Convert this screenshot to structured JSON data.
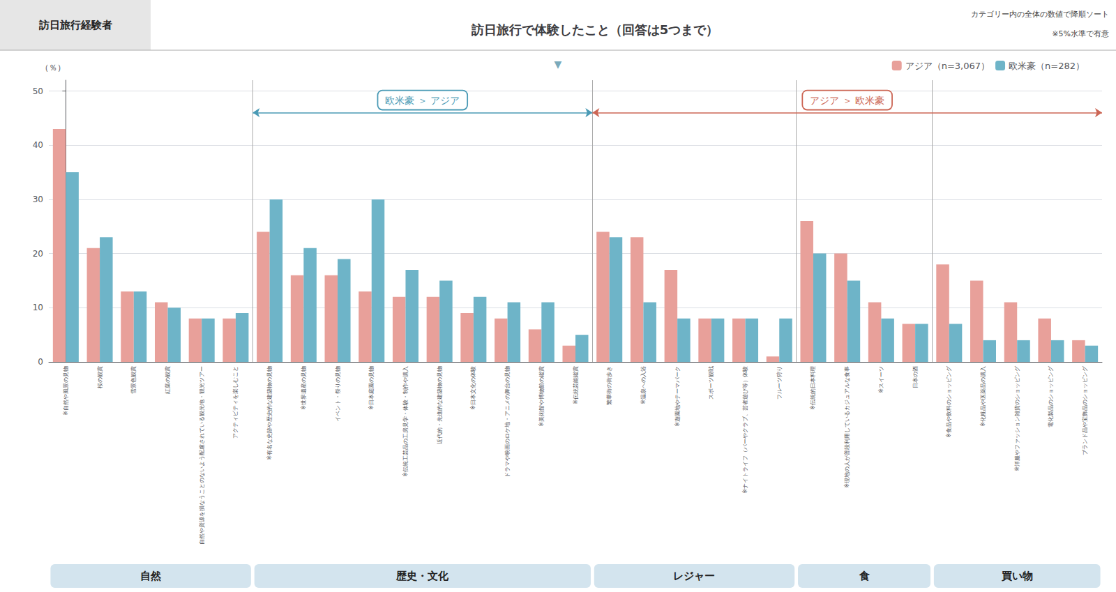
{
  "chart_data": {
    "type": "bar",
    "title": "訪日旅行で体験したこと（回答は5つまで）",
    "subtitle": "訪日旅行経験者",
    "notes": [
      "カテゴリー内の全体の数値で降順ソート",
      "※5%水準で有意"
    ],
    "sort_indicator": "▼",
    "ylabel": "（％）",
    "categories": [
      "※自然や風景の見物",
      "桜の観賞",
      "雪景色観賞",
      "紅葉の観賞",
      "自然や資源を損なうことのないよう配慮されている観光地・観光ツアー",
      "アクティビティを楽しむこと",
      "※有名な史跡や歴史的な建築物の見物",
      "※世界遺産の見物",
      "イベント・祭りの見物",
      "※日本庭園の見物",
      "※伝統工芸品の工房見学・体験・制作や購入",
      "近代的・先進的な建築物の見物",
      "※日本文化の体験",
      "ドラマや映画のロケ地・アニメの舞台の見物",
      "※美術館や博物館の鑑賞",
      "※伝統芸能鑑賞",
      "繁華街の街歩き",
      "※温泉への入浴",
      "※遊園地やテーマパーク",
      "スポーツ観戦",
      "※ナイトライフ（バーやクラブ、芸者遊び等）体験",
      "フルーツ狩り",
      "※伝統的日本料理",
      "※現地の人が普段利用しているカジュアルな食事",
      "※スイーツ",
      "日本の酒",
      "※食品や飲料のショッピング",
      "※化粧品や医薬品の購入",
      "※洋服やファッション雑貨のショッピング",
      "電化製品のショッピング",
      "ブランド品や宝飾品のショッピング"
    ],
    "series": [
      {
        "name": "アジア（n=3,067）",
        "color": "#E8A09A",
        "values": [
          43,
          21,
          13,
          11,
          8,
          8,
          24,
          16,
          16,
          13,
          12,
          12,
          9,
          8,
          6,
          3,
          24,
          23,
          17,
          8,
          8,
          1,
          26,
          20,
          11,
          7,
          18,
          15,
          11,
          8,
          4
        ]
      },
      {
        "name": "欧米豪（n=282）",
        "color": "#6EB4C8",
        "values": [
          35,
          23,
          13,
          10,
          8,
          9,
          30,
          21,
          19,
          30,
          17,
          15,
          12,
          11,
          11,
          5,
          23,
          11,
          8,
          8,
          8,
          8,
          20,
          15,
          8,
          7,
          7,
          4,
          4,
          4,
          3
        ]
      }
    ],
    "ylim": [
      0,
      52
    ],
    "yticks": [
      0,
      10,
      20,
      30,
      40,
      50
    ],
    "grid": true,
    "legend": "top",
    "groups": [
      {
        "name": "自然",
        "start": 0,
        "end": 5
      },
      {
        "name": "歴史・文化",
        "start": 6,
        "end": 15
      },
      {
        "name": "レジャー",
        "start": 16,
        "end": 21
      },
      {
        "name": "食",
        "start": 22,
        "end": 25
      },
      {
        "name": "買い物",
        "start": 26,
        "end": 30
      }
    ],
    "separators": [
      5.5,
      15.5,
      21.5,
      25.5
    ],
    "annotations": [
      {
        "text": "欧米豪 ＞ アジア",
        "color": "#4A9AB5",
        "x_start": 5.5,
        "x_end": 15.5,
        "y": 46
      },
      {
        "text": "アジア ＞ 欧米豪",
        "color": "#CC6655",
        "x_start": 15.5,
        "x_end": 30.5,
        "y": 46
      }
    ]
  }
}
